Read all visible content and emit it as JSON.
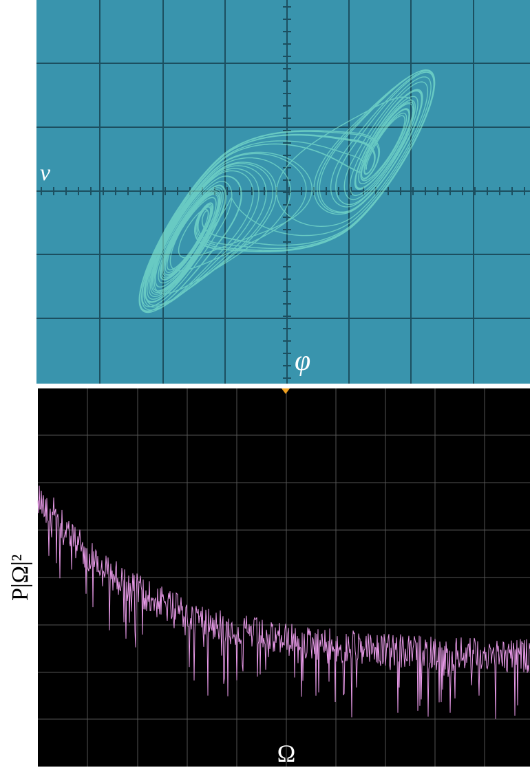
{
  "top_panel": {
    "y_label": "v",
    "x_label": "φ"
  },
  "bottom_panel": {
    "y_label": "P|Ω|²",
    "x_label": "Ω"
  }
}
